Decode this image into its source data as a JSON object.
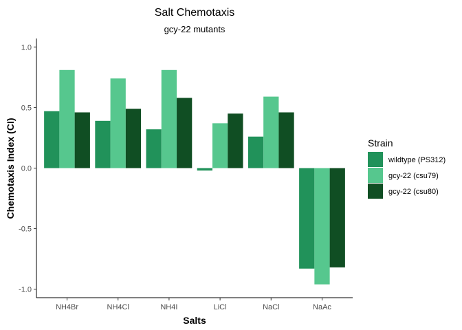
{
  "chart_data": {
    "type": "bar",
    "title": "Salt Chemotaxis",
    "subtitle": "gcy-22 mutants",
    "xlabel": "Salts",
    "ylabel": "Chemotaxis Index (CI)",
    "ylim": [
      -1.07,
      1.07
    ],
    "yticks": [
      1.0,
      0.5,
      0.0,
      -0.5,
      -1.0
    ],
    "ytick_labels": [
      "1.0",
      "0.5",
      "0.0",
      "-0.5",
      "-1.0"
    ],
    "grid": false,
    "legend_title": "Strain",
    "legend_position": "right",
    "categories": [
      "NH4Br",
      "NH4Cl",
      "NH4I",
      "LiCl",
      "NaCl",
      "NaAc"
    ],
    "series": [
      {
        "name": "wildtype (PS312)",
        "color": "#21925a",
        "values": [
          0.47,
          0.39,
          0.32,
          -0.02,
          0.26,
          -0.83
        ]
      },
      {
        "name": "gcy-22 (csu79)",
        "color": "#56c78e",
        "values": [
          0.81,
          0.74,
          0.81,
          0.37,
          0.59,
          -0.96
        ]
      },
      {
        "name": "gcy-22 (csu80)",
        "color": "#104e23",
        "values": [
          0.46,
          0.49,
          0.58,
          0.45,
          0.46,
          -0.82
        ]
      }
    ]
  }
}
